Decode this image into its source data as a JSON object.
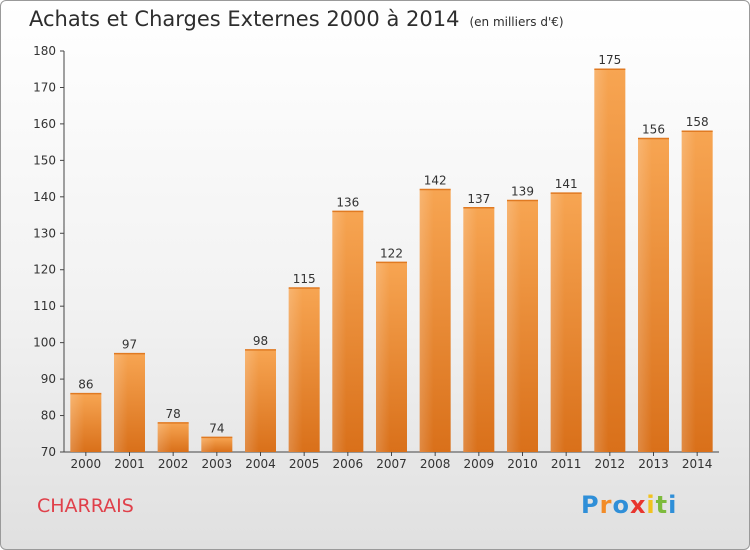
{
  "chart_data": {
    "type": "bar",
    "title": "Achats et Charges Externes 2000 à 2014",
    "subtitle": "(en milliers d'€)",
    "categories": [
      "2000",
      "2001",
      "2002",
      "2003",
      "2004",
      "2005",
      "2006",
      "2007",
      "2008",
      "2009",
      "2010",
      "2011",
      "2012",
      "2013",
      "2014"
    ],
    "values": [
      86,
      97,
      78,
      74,
      98,
      115,
      136,
      122,
      142,
      137,
      139,
      141,
      175,
      156,
      158
    ],
    "ylim": [
      70,
      180
    ],
    "yticks": [
      70,
      80,
      90,
      100,
      110,
      120,
      130,
      140,
      150,
      160,
      170,
      180
    ],
    "grid": false,
    "bar_color": "#f0913a"
  },
  "commune": "CHARRAIS",
  "logo": {
    "letters": [
      "P",
      "r",
      "o",
      "x",
      "i",
      "t",
      "i"
    ],
    "colors": [
      "#2f8fd8",
      "#f28c28",
      "#2f8fd8",
      "#e8352e",
      "#f2c21f",
      "#7dbb3c",
      "#2f8fd8"
    ]
  }
}
